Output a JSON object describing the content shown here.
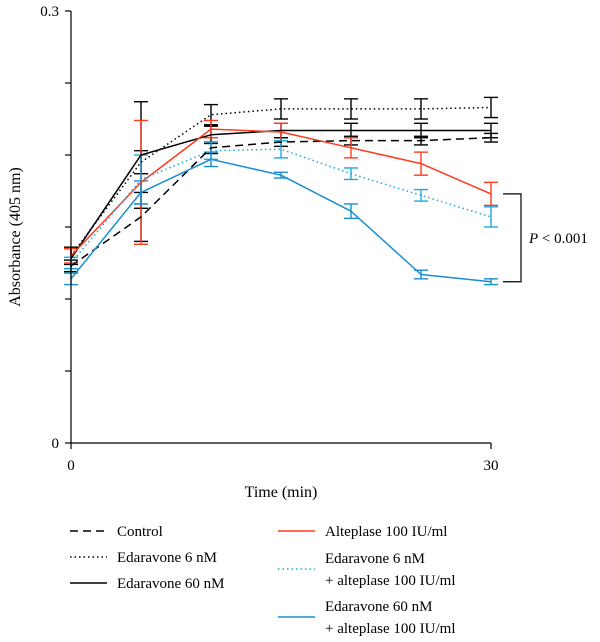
{
  "chart_data": {
    "type": "line",
    "xlabel": "Time (min)",
    "ylabel": "Absorbance (405 nm)",
    "xlim": [
      0,
      30
    ],
    "ylim": [
      0,
      0.3
    ],
    "x_ticks": [
      0,
      30
    ],
    "y_tick_labels": [
      {
        "value": 0,
        "label": "0"
      },
      {
        "value": 0.3,
        "label": "0.3"
      }
    ],
    "y_minor_ticks": [
      0.05,
      0.1,
      0.15,
      0.2,
      0.25
    ],
    "x": [
      0,
      5,
      10,
      15,
      20,
      25,
      30
    ],
    "grid": false,
    "legend_position": "bottom",
    "annotation": {
      "prefix": "P",
      "text": " < 0.001",
      "bracket_from_series": 3,
      "bracket_to_series": 5,
      "at_x": 30
    },
    "series": [
      {
        "name": "Control",
        "color": "#000000",
        "line_style": "dashed",
        "values": [
          0.123,
          0.157,
          0.205,
          0.209,
          0.21,
          0.21,
          0.212
        ],
        "errors": [
          0.004,
          0.017,
          0.004,
          0.003,
          0.003,
          0.003,
          0.003
        ]
      },
      {
        "name": "Edaravone 6 nM",
        "color": "#000000",
        "line_style": "dotted",
        "values": [
          0.13,
          0.195,
          0.228,
          0.232,
          0.232,
          0.232,
          0.233
        ],
        "errors": [
          0.006,
          0.008,
          0.007,
          0.007,
          0.007,
          0.007,
          0.007
        ]
      },
      {
        "name": "Edaravone 60 nM",
        "color": "#000000",
        "line_style": "solid",
        "values": [
          0.128,
          0.2,
          0.214,
          0.217,
          0.217,
          0.217,
          0.217
        ],
        "errors": [
          0.007,
          0.037,
          0.006,
          0.005,
          0.005,
          0.005,
          0.005
        ]
      },
      {
        "name": "Alteplase 100 IU/ml",
        "color": "#ff3b1f",
        "line_style": "solid",
        "values": [
          0.13,
          0.181,
          0.218,
          0.216,
          0.205,
          0.194,
          0.173
        ],
        "errors": [
          0.005,
          0.043,
          0.006,
          0.006,
          0.007,
          0.008,
          0.008
        ]
      },
      {
        "name": "Edaravone 6 nM\n+ alteplase 100 IU/ml",
        "color": "#1ea8e0",
        "line_style": "dotted",
        "values": [
          0.125,
          0.183,
          0.203,
          0.204,
          0.187,
          0.172,
          0.157
        ],
        "errors": [
          0.004,
          0.017,
          0.006,
          0.006,
          0.004,
          0.004,
          0.007
        ]
      },
      {
        "name": "Edaravone 60 nM\n+ alteplase 100 IU/ml",
        "color": "#1a8fd0",
        "line_style": "solid",
        "values": [
          0.114,
          0.174,
          0.197,
          0.186,
          0.161,
          0.117,
          0.112
        ],
        "errors": [
          0.004,
          0.008,
          0.005,
          0.002,
          0.005,
          0.003,
          0.002
        ]
      }
    ]
  }
}
